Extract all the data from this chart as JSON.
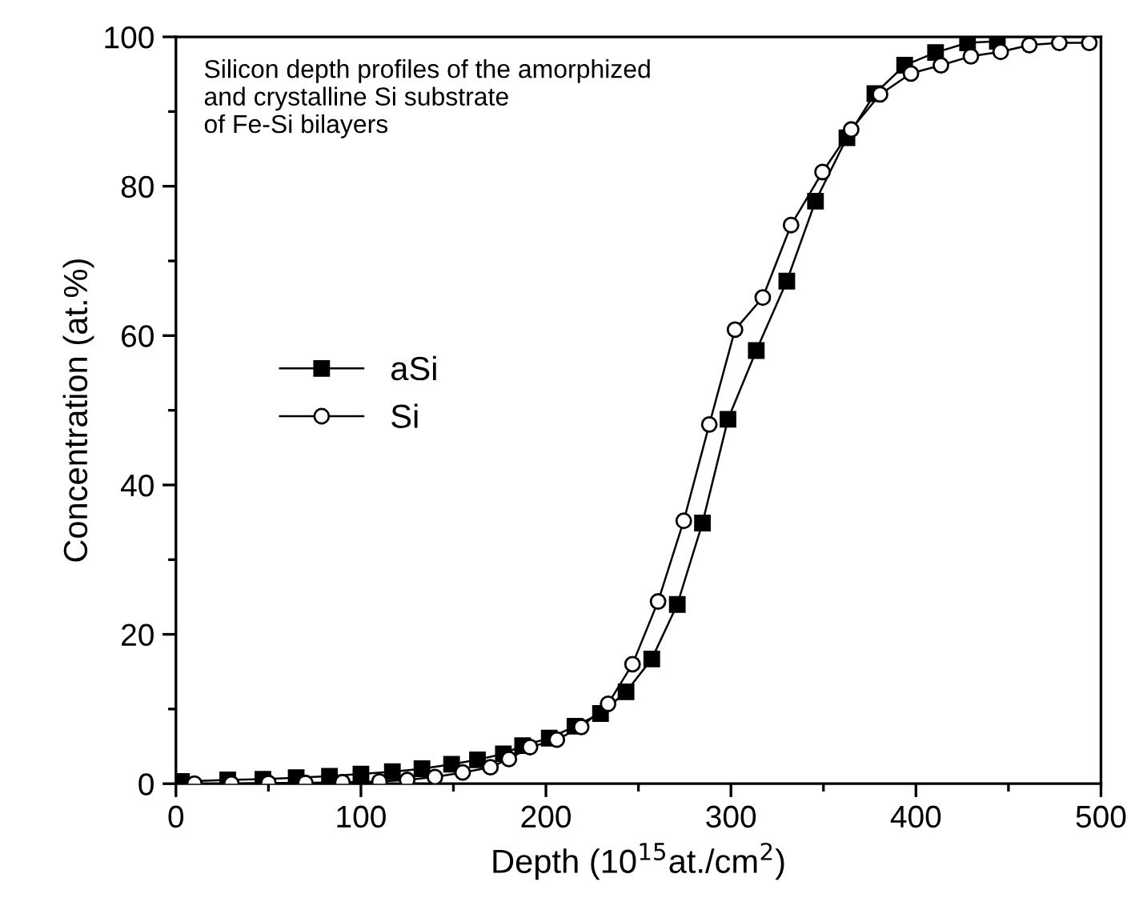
{
  "chart_data": {
    "type": "line",
    "xlabel": "Depth (10$^{15}$at./cm$^{2}$)",
    "ylabel": "Concentration (at.%)",
    "annotations": [
      "Silicon depth profiles of the amorphized\nand crystalline Si substrate\nof Fe-Si bilayers"
    ],
    "xlim": [
      0,
      500
    ],
    "ylim": [
      0,
      100
    ],
    "xticks": [
      0,
      100,
      200,
      300,
      400,
      500
    ],
    "yticks": [
      0,
      20,
      40,
      60,
      80,
      100
    ],
    "grid": false,
    "legend": "left",
    "series": [
      {
        "name": "aSi",
        "color": "#000000",
        "marker": "square",
        "x": [
          3,
          28,
          47,
          65,
          83,
          100,
          117,
          133,
          149,
          163,
          177,
          187.4,
          201.8,
          215.7,
          229.5,
          243.3,
          257.2,
          271,
          284.6,
          298.4,
          313.7,
          330.2,
          345.7,
          362.7,
          377.8,
          393.9,
          410.6,
          427.9,
          444
        ],
        "values": [
          0.3,
          0.5,
          0.6,
          0.8,
          1.0,
          1.3,
          1.6,
          2.0,
          2.6,
          3.2,
          4.0,
          5.1,
          6.1,
          7.7,
          9.4,
          12.3,
          16.7,
          24.0,
          34.9,
          48.8,
          58.0,
          67.3,
          78.0,
          86.5,
          92.4,
          96.2,
          97.9,
          99.2,
          99.4
        ]
      },
      {
        "name": "Si",
        "color": "#000000",
        "marker": "circle",
        "x": [
          10,
          30,
          50,
          70,
          90,
          110,
          125,
          140,
          155,
          170,
          180,
          191.4,
          205.9,
          219.1,
          233.6,
          246.8,
          260.6,
          274.5,
          288.3,
          302.2,
          317.2,
          332.5,
          349.5,
          365,
          380.6,
          397.3,
          413.5,
          429.7,
          445.8,
          461.3,
          477.5,
          493.7
        ],
        "values": [
          0.0,
          0.0,
          0.1,
          0.1,
          0.2,
          0.3,
          0.5,
          0.9,
          1.5,
          2.2,
          3.3,
          4.9,
          5.9,
          7.6,
          10.7,
          16.0,
          24.4,
          35.2,
          48.1,
          60.8,
          65.1,
          74.8,
          81.9,
          87.6,
          92.3,
          95.1,
          96.2,
          97.4,
          98.0,
          98.9,
          99.2,
          99.2
        ]
      }
    ]
  }
}
